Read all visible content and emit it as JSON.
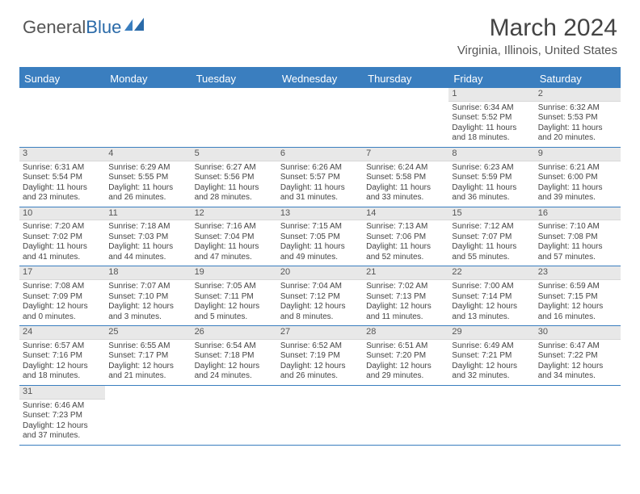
{
  "logo": {
    "text1": "General",
    "text2": "Blue"
  },
  "title": "March 2024",
  "location": "Virginia, Illinois, United States",
  "colors": {
    "header_bg": "#3a7ebf",
    "header_text": "#ffffff",
    "daynum_bg": "#e8e8e8",
    "border": "#3a7ebf",
    "text": "#444444",
    "background": "#ffffff"
  },
  "day_names": [
    "Sunday",
    "Monday",
    "Tuesday",
    "Wednesday",
    "Thursday",
    "Friday",
    "Saturday"
  ],
  "weeks": [
    [
      null,
      null,
      null,
      null,
      null,
      {
        "n": "1",
        "sr": "6:34 AM",
        "ss": "5:52 PM",
        "dl": "11 hours and 18 minutes."
      },
      {
        "n": "2",
        "sr": "6:32 AM",
        "ss": "5:53 PM",
        "dl": "11 hours and 20 minutes."
      }
    ],
    [
      {
        "n": "3",
        "sr": "6:31 AM",
        "ss": "5:54 PM",
        "dl": "11 hours and 23 minutes."
      },
      {
        "n": "4",
        "sr": "6:29 AM",
        "ss": "5:55 PM",
        "dl": "11 hours and 26 minutes."
      },
      {
        "n": "5",
        "sr": "6:27 AM",
        "ss": "5:56 PM",
        "dl": "11 hours and 28 minutes."
      },
      {
        "n": "6",
        "sr": "6:26 AM",
        "ss": "5:57 PM",
        "dl": "11 hours and 31 minutes."
      },
      {
        "n": "7",
        "sr": "6:24 AM",
        "ss": "5:58 PM",
        "dl": "11 hours and 33 minutes."
      },
      {
        "n": "8",
        "sr": "6:23 AM",
        "ss": "5:59 PM",
        "dl": "11 hours and 36 minutes."
      },
      {
        "n": "9",
        "sr": "6:21 AM",
        "ss": "6:00 PM",
        "dl": "11 hours and 39 minutes."
      }
    ],
    [
      {
        "n": "10",
        "sr": "7:20 AM",
        "ss": "7:02 PM",
        "dl": "11 hours and 41 minutes."
      },
      {
        "n": "11",
        "sr": "7:18 AM",
        "ss": "7:03 PM",
        "dl": "11 hours and 44 minutes."
      },
      {
        "n": "12",
        "sr": "7:16 AM",
        "ss": "7:04 PM",
        "dl": "11 hours and 47 minutes."
      },
      {
        "n": "13",
        "sr": "7:15 AM",
        "ss": "7:05 PM",
        "dl": "11 hours and 49 minutes."
      },
      {
        "n": "14",
        "sr": "7:13 AM",
        "ss": "7:06 PM",
        "dl": "11 hours and 52 minutes."
      },
      {
        "n": "15",
        "sr": "7:12 AM",
        "ss": "7:07 PM",
        "dl": "11 hours and 55 minutes."
      },
      {
        "n": "16",
        "sr": "7:10 AM",
        "ss": "7:08 PM",
        "dl": "11 hours and 57 minutes."
      }
    ],
    [
      {
        "n": "17",
        "sr": "7:08 AM",
        "ss": "7:09 PM",
        "dl": "12 hours and 0 minutes."
      },
      {
        "n": "18",
        "sr": "7:07 AM",
        "ss": "7:10 PM",
        "dl": "12 hours and 3 minutes."
      },
      {
        "n": "19",
        "sr": "7:05 AM",
        "ss": "7:11 PM",
        "dl": "12 hours and 5 minutes."
      },
      {
        "n": "20",
        "sr": "7:04 AM",
        "ss": "7:12 PM",
        "dl": "12 hours and 8 minutes."
      },
      {
        "n": "21",
        "sr": "7:02 AM",
        "ss": "7:13 PM",
        "dl": "12 hours and 11 minutes."
      },
      {
        "n": "22",
        "sr": "7:00 AM",
        "ss": "7:14 PM",
        "dl": "12 hours and 13 minutes."
      },
      {
        "n": "23",
        "sr": "6:59 AM",
        "ss": "7:15 PM",
        "dl": "12 hours and 16 minutes."
      }
    ],
    [
      {
        "n": "24",
        "sr": "6:57 AM",
        "ss": "7:16 PM",
        "dl": "12 hours and 18 minutes."
      },
      {
        "n": "25",
        "sr": "6:55 AM",
        "ss": "7:17 PM",
        "dl": "12 hours and 21 minutes."
      },
      {
        "n": "26",
        "sr": "6:54 AM",
        "ss": "7:18 PM",
        "dl": "12 hours and 24 minutes."
      },
      {
        "n": "27",
        "sr": "6:52 AM",
        "ss": "7:19 PM",
        "dl": "12 hours and 26 minutes."
      },
      {
        "n": "28",
        "sr": "6:51 AM",
        "ss": "7:20 PM",
        "dl": "12 hours and 29 minutes."
      },
      {
        "n": "29",
        "sr": "6:49 AM",
        "ss": "7:21 PM",
        "dl": "12 hours and 32 minutes."
      },
      {
        "n": "30",
        "sr": "6:47 AM",
        "ss": "7:22 PM",
        "dl": "12 hours and 34 minutes."
      }
    ],
    [
      {
        "n": "31",
        "sr": "6:46 AM",
        "ss": "7:23 PM",
        "dl": "12 hours and 37 minutes."
      },
      null,
      null,
      null,
      null,
      null,
      null
    ]
  ],
  "labels": {
    "sunrise": "Sunrise:",
    "sunset": "Sunset:",
    "daylight": "Daylight:"
  }
}
